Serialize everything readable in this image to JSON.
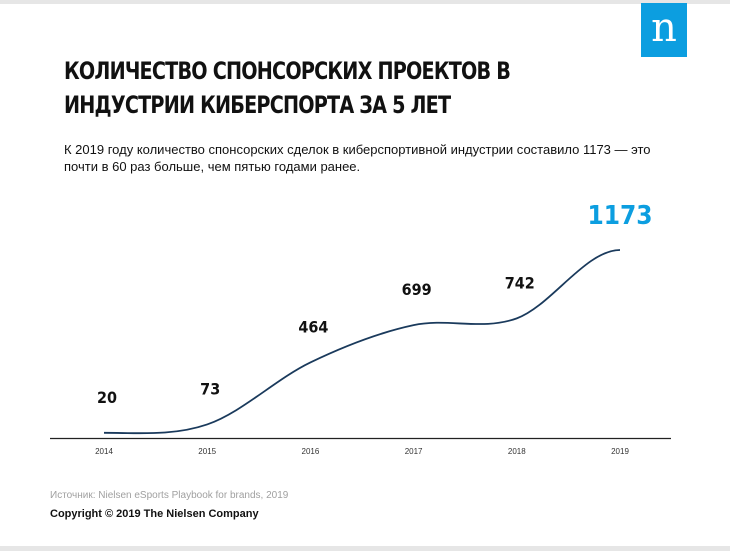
{
  "brand": {
    "logo_text": "n",
    "accent_color": "#0c9ee0"
  },
  "header": {
    "title": "КОЛИЧЕСТВО СПОНСОРСКИХ ПРОЕКТОВ В ИНДУСТРИИ КИБЕРСПОРТА ЗА 5 ЛЕТ",
    "subtitle": "К 2019 году количество спонсорских сделок в киберспортивной индустрии составило 1173 — это почти в 60 раз больше, чем пятью годами ранее."
  },
  "chart_data": {
    "type": "line",
    "title": "КОЛИЧЕСТВО СПОНСОРСКИХ ПРОЕКТОВ В ИНДУСТРИИ КИБЕРСПОРТА ЗА 5 ЛЕТ",
    "categories": [
      "2014",
      "2015",
      "2016",
      "2017",
      "2018",
      "2019"
    ],
    "values": [
      20,
      73,
      464,
      699,
      742,
      1173
    ],
    "xlabel": "",
    "ylabel": "",
    "ylim": [
      0,
      1173
    ],
    "grid": false,
    "line_color": "#1a3a5c",
    "highlight_color": "#0c9ee0"
  },
  "footer": {
    "source": "Источник: Nielsen eSports Playbook for brands, 2019",
    "copyright": "Copyright © 2019 The Nielsen Company"
  }
}
